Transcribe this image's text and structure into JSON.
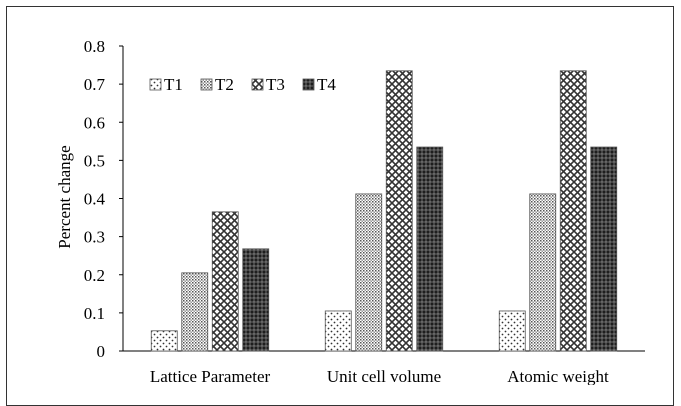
{
  "chart_data": {
    "type": "bar",
    "title": "",
    "xlabel": "",
    "ylabel": "Percent change",
    "categories": [
      "Lattice Parameter",
      "Unit cell volume",
      "Atomic weight"
    ],
    "series": [
      {
        "name": "T1",
        "values": [
          0.053,
          0.105,
          0.105
        ],
        "pattern": "dots"
      },
      {
        "name": "T2",
        "values": [
          0.205,
          0.412,
          0.412
        ],
        "pattern": "fine-grid"
      },
      {
        "name": "T3",
        "values": [
          0.365,
          0.735,
          0.735
        ],
        "pattern": "crosshatch"
      },
      {
        "name": "T4",
        "values": [
          0.268,
          0.535,
          0.535
        ],
        "pattern": "dense-crosshatch"
      }
    ],
    "ylim": [
      0,
      0.8
    ],
    "yticks": [
      "0",
      "0.1",
      "0.2",
      "0.3",
      "0.4",
      "0.5",
      "0.6",
      "0.7",
      "0.8"
    ],
    "grid": false,
    "legend": "top-left, inside plot, horizontal"
  }
}
